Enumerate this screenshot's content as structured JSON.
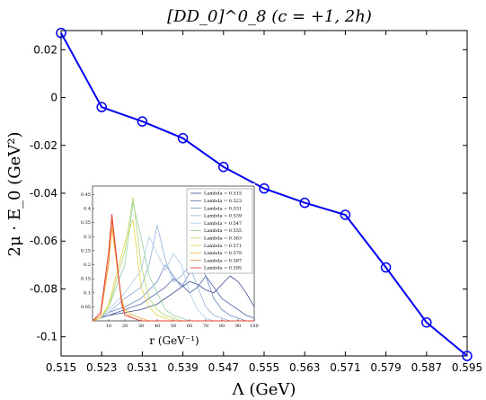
{
  "chart_data": [
    {
      "type": "line",
      "title": "[DD_0]^0_8 (c = +1, 2h)",
      "xlabel": "Λ (GeV)",
      "ylabel": "2μ · E_0 (GeV²)",
      "xlim": [
        0.515,
        0.595
      ],
      "ylim": [
        -0.108,
        0.028
      ],
      "x_ticks": [
        "0.515",
        "0.523",
        "0.531",
        "0.539",
        "0.547",
        "0.555",
        "0.563",
        "0.571",
        "0.579",
        "0.587",
        "0.595"
      ],
      "y_ticks": [
        0.02,
        0,
        -0.02,
        -0.04,
        -0.06,
        -0.08,
        -0.1
      ],
      "y_tick_labels": [
        "0.02",
        "0",
        "-0.02",
        "-0.04",
        "-0.06",
        "-0.08",
        "-0.1"
      ],
      "grid": false,
      "series": [
        {
          "color": "#0000ee",
          "marker": "circle",
          "x": [
            0.515,
            0.523,
            0.531,
            0.539,
            0.547,
            0.555,
            0.563,
            0.571,
            0.579,
            0.587,
            0.595
          ],
          "y": [
            0.027,
            -0.004,
            -0.01,
            -0.017,
            -0.029,
            -0.038,
            -0.044,
            -0.049,
            -0.071,
            -0.094,
            -0.108
          ]
        }
      ]
    },
    {
      "type": "line",
      "xlabel": "r (GeV⁻¹)",
      "ylabel": "",
      "xlim": [
        0,
        100
      ],
      "ylim": [
        0,
        0.48
      ],
      "x_ticks": [
        "10",
        "20",
        "30",
        "40",
        "50",
        "60",
        "70",
        "80",
        "90",
        "100"
      ],
      "y_ticks": [
        "0.05",
        "0.1",
        "0.15",
        "0.2",
        "0.25",
        "0.3",
        "0.35",
        "0.4",
        "0.45"
      ],
      "legend_position": "top-right",
      "series": [
        {
          "name": "Lambda = 0.515",
          "color": "#3b4a8c",
          "x": [
            0,
            5,
            10,
            20,
            30,
            35,
            40,
            45,
            50,
            55,
            60,
            65,
            70,
            75,
            80,
            85,
            90,
            95,
            100
          ],
          "y": [
            0,
            0.01,
            0.02,
            0.03,
            0.04,
            0.05,
            0.06,
            0.08,
            0.1,
            0.12,
            0.14,
            0.13,
            0.11,
            0.1,
            0.13,
            0.16,
            0.14,
            0.1,
            0.05
          ]
        },
        {
          "name": "Lambda = 0.523",
          "color": "#5063a8",
          "x": [
            0,
            5,
            10,
            20,
            30,
            35,
            40,
            45,
            50,
            55,
            60,
            65,
            70,
            75,
            80,
            85,
            90,
            95,
            100
          ],
          "y": [
            0,
            0.01,
            0.02,
            0.04,
            0.06,
            0.08,
            0.1,
            0.12,
            0.15,
            0.13,
            0.1,
            0.12,
            0.16,
            0.12,
            0.08,
            0.06,
            0.04,
            0.02,
            0.01
          ]
        },
        {
          "name": "Lambda = 0.531",
          "color": "#6d88c2",
          "x": [
            0,
            5,
            10,
            20,
            30,
            35,
            40,
            45,
            50,
            55,
            60,
            65,
            70,
            75,
            80,
            85,
            90,
            95,
            100
          ],
          "y": [
            0,
            0.01,
            0.03,
            0.05,
            0.08,
            0.11,
            0.14,
            0.2,
            0.16,
            0.12,
            0.17,
            0.22,
            0.16,
            0.08,
            0.04,
            0.02,
            0.01,
            0,
            0
          ]
        },
        {
          "name": "Lambda = 0.539",
          "color": "#8fb0d8",
          "x": [
            0,
            5,
            10,
            20,
            30,
            35,
            40,
            45,
            50,
            55,
            60,
            65,
            70,
            75,
            80,
            85,
            90,
            95,
            100
          ],
          "y": [
            0,
            0.01,
            0.03,
            0.08,
            0.12,
            0.2,
            0.34,
            0.22,
            0.14,
            0.16,
            0.2,
            0.12,
            0.05,
            0.02,
            0.01,
            0,
            0,
            0,
            0
          ]
        },
        {
          "name": "Lambda = 0.547",
          "color": "#a9cbe6",
          "x": [
            0,
            5,
            10,
            20,
            30,
            35,
            40,
            45,
            50,
            55,
            60,
            65,
            70,
            75,
            80,
            85,
            90,
            95,
            100
          ],
          "y": [
            0,
            0.01,
            0.04,
            0.1,
            0.18,
            0.3,
            0.24,
            0.18,
            0.24,
            0.2,
            0.1,
            0.04,
            0.01,
            0,
            0,
            0,
            0,
            0,
            0
          ]
        },
        {
          "name": "Lambda = 0.555",
          "color": "#8fd19e",
          "x": [
            0,
            5,
            10,
            20,
            25,
            30,
            35,
            40,
            45,
            50,
            55,
            60,
            65,
            70,
            80,
            90,
            100
          ],
          "y": [
            0,
            0.01,
            0.05,
            0.2,
            0.42,
            0.3,
            0.16,
            0.1,
            0.04,
            0.02,
            0.01,
            0,
            0,
            0,
            0,
            0,
            0
          ]
        },
        {
          "name": "Lambda = 0.563",
          "color": "#b5d66a",
          "x": [
            0,
            5,
            10,
            20,
            25,
            30,
            35,
            40,
            45,
            50,
            55,
            60,
            65,
            70,
            80,
            90,
            100
          ],
          "y": [
            0,
            0.01,
            0.05,
            0.25,
            0.44,
            0.2,
            0.08,
            0.04,
            0.02,
            0.01,
            0,
            0,
            0,
            0,
            0,
            0,
            0
          ]
        },
        {
          "name": "Lambda = 0.571",
          "color": "#e2d54a",
          "x": [
            0,
            5,
            10,
            20,
            25,
            30,
            35,
            40,
            45,
            50,
            55,
            60,
            65,
            70,
            80,
            90,
            100
          ],
          "y": [
            0,
            0.01,
            0.06,
            0.28,
            0.36,
            0.12,
            0.05,
            0.02,
            0.01,
            0,
            0,
            0,
            0,
            0,
            0,
            0,
            0
          ]
        },
        {
          "name": "Lambda = 0.579",
          "color": "#f2b03e",
          "x": [
            0,
            5,
            10,
            12,
            15,
            18,
            20,
            25,
            30,
            35,
            40,
            50,
            60,
            70,
            80,
            90,
            100
          ],
          "y": [
            0,
            0.02,
            0.2,
            0.33,
            0.2,
            0.08,
            0.04,
            0.02,
            0.01,
            0,
            0,
            0,
            0,
            0,
            0,
            0,
            0
          ]
        },
        {
          "name": "Lambda = 0.587",
          "color": "#ef7b35",
          "x": [
            0,
            5,
            10,
            12,
            15,
            18,
            20,
            25,
            30,
            35,
            40,
            50,
            60,
            70,
            80,
            90,
            100
          ],
          "y": [
            0,
            0.02,
            0.22,
            0.36,
            0.2,
            0.07,
            0.03,
            0.01,
            0,
            0,
            0,
            0,
            0,
            0,
            0,
            0,
            0
          ]
        },
        {
          "name": "Lambda = 0.595",
          "color": "#e0322a",
          "x": [
            0,
            5,
            10,
            12,
            15,
            18,
            20,
            25,
            30,
            35,
            40,
            50,
            60,
            70,
            80,
            90,
            100
          ],
          "y": [
            0,
            0.03,
            0.25,
            0.38,
            0.22,
            0.06,
            0.02,
            0.01,
            0,
            0,
            0,
            0,
            0,
            0,
            0,
            0,
            0
          ]
        }
      ]
    }
  ]
}
